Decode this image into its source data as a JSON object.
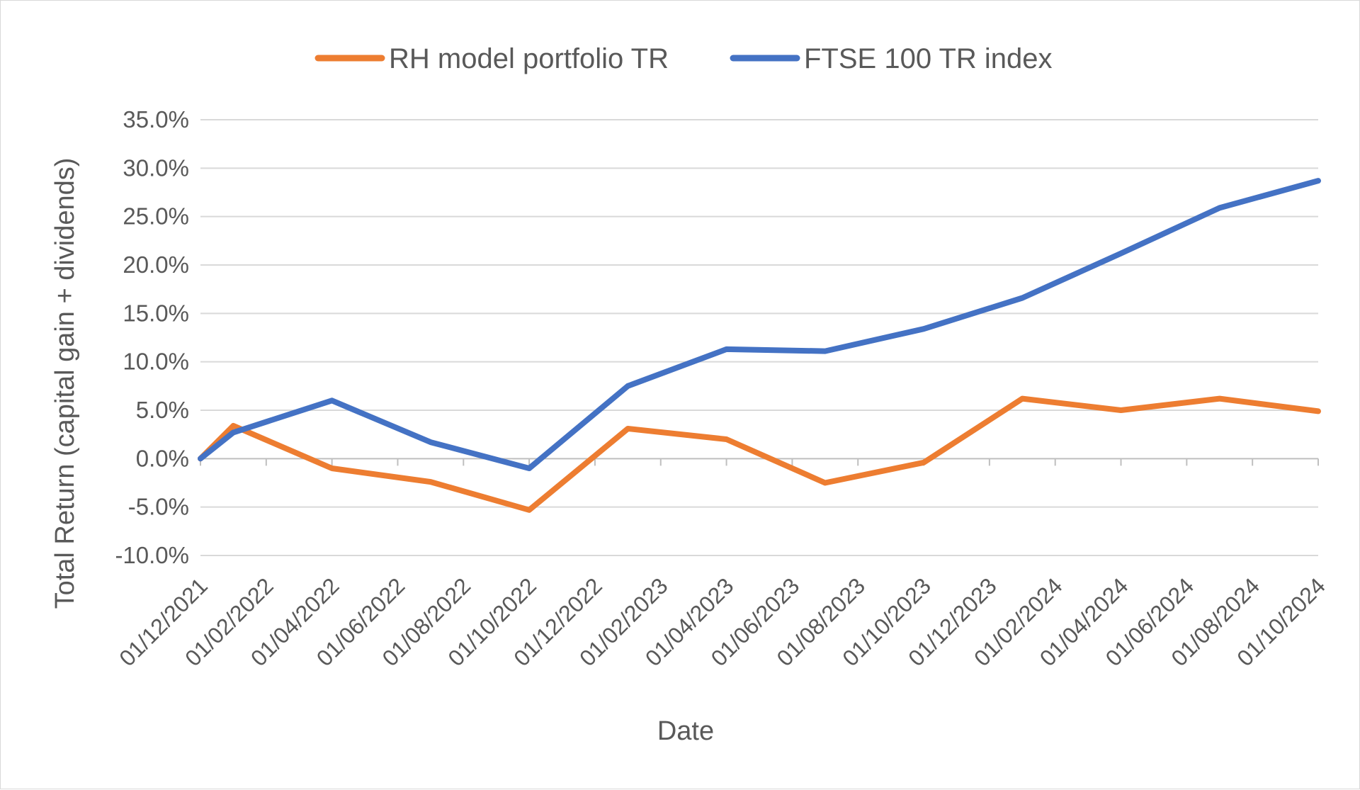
{
  "chart_data": {
    "type": "line",
    "title": "",
    "xlabel": "Date",
    "ylabel": "Total Return (capital gain + dividends)",
    "ylim": [
      -10,
      35
    ],
    "yticks": [
      35,
      30,
      25,
      20,
      15,
      10,
      5,
      0,
      -5,
      -10
    ],
    "ytick_labels": [
      "35.0%",
      "30.0%",
      "25.0%",
      "20.0%",
      "15.0%",
      "10.0%",
      "5.0%",
      "0.0%",
      "-5.0%",
      "-10.0%"
    ],
    "xlim": [
      0,
      34
    ],
    "xtick_positions": [
      0,
      2,
      4,
      6,
      8,
      10,
      12,
      14,
      16,
      18,
      20,
      22,
      24,
      26,
      28,
      30,
      32,
      34
    ],
    "xtick_labels": [
      "01/12/2021",
      "01/02/2022",
      "01/04/2022",
      "01/06/2022",
      "01/08/2022",
      "01/10/2022",
      "01/12/2022",
      "01/02/2023",
      "01/04/2023",
      "01/06/2023",
      "01/08/2023",
      "01/10/2023",
      "01/12/2023",
      "01/02/2024",
      "01/04/2024",
      "01/06/2024",
      "01/08/2024",
      "01/10/2024"
    ],
    "grid": true,
    "legend_position": "top",
    "series": [
      {
        "name": "RH model portfolio TR",
        "color": "#ED7D31",
        "x": [
          0,
          1,
          4,
          7,
          10,
          13,
          16,
          19,
          22,
          25,
          28,
          31,
          34
        ],
        "values": [
          0.0,
          3.4,
          -1.0,
          -2.4,
          -5.3,
          3.1,
          2.0,
          -2.5,
          -0.4,
          6.2,
          5.0,
          6.2,
          4.9
        ]
      },
      {
        "name": "FTSE 100 TR index",
        "color": "#4472C4",
        "x": [
          0,
          1,
          4,
          7,
          10,
          13,
          16,
          19,
          22,
          25,
          28,
          31,
          34
        ],
        "values": [
          0.0,
          2.7,
          6.0,
          1.7,
          -1.0,
          7.5,
          11.3,
          11.1,
          13.4,
          16.6,
          21.2,
          25.9,
          28.7
        ]
      }
    ]
  }
}
